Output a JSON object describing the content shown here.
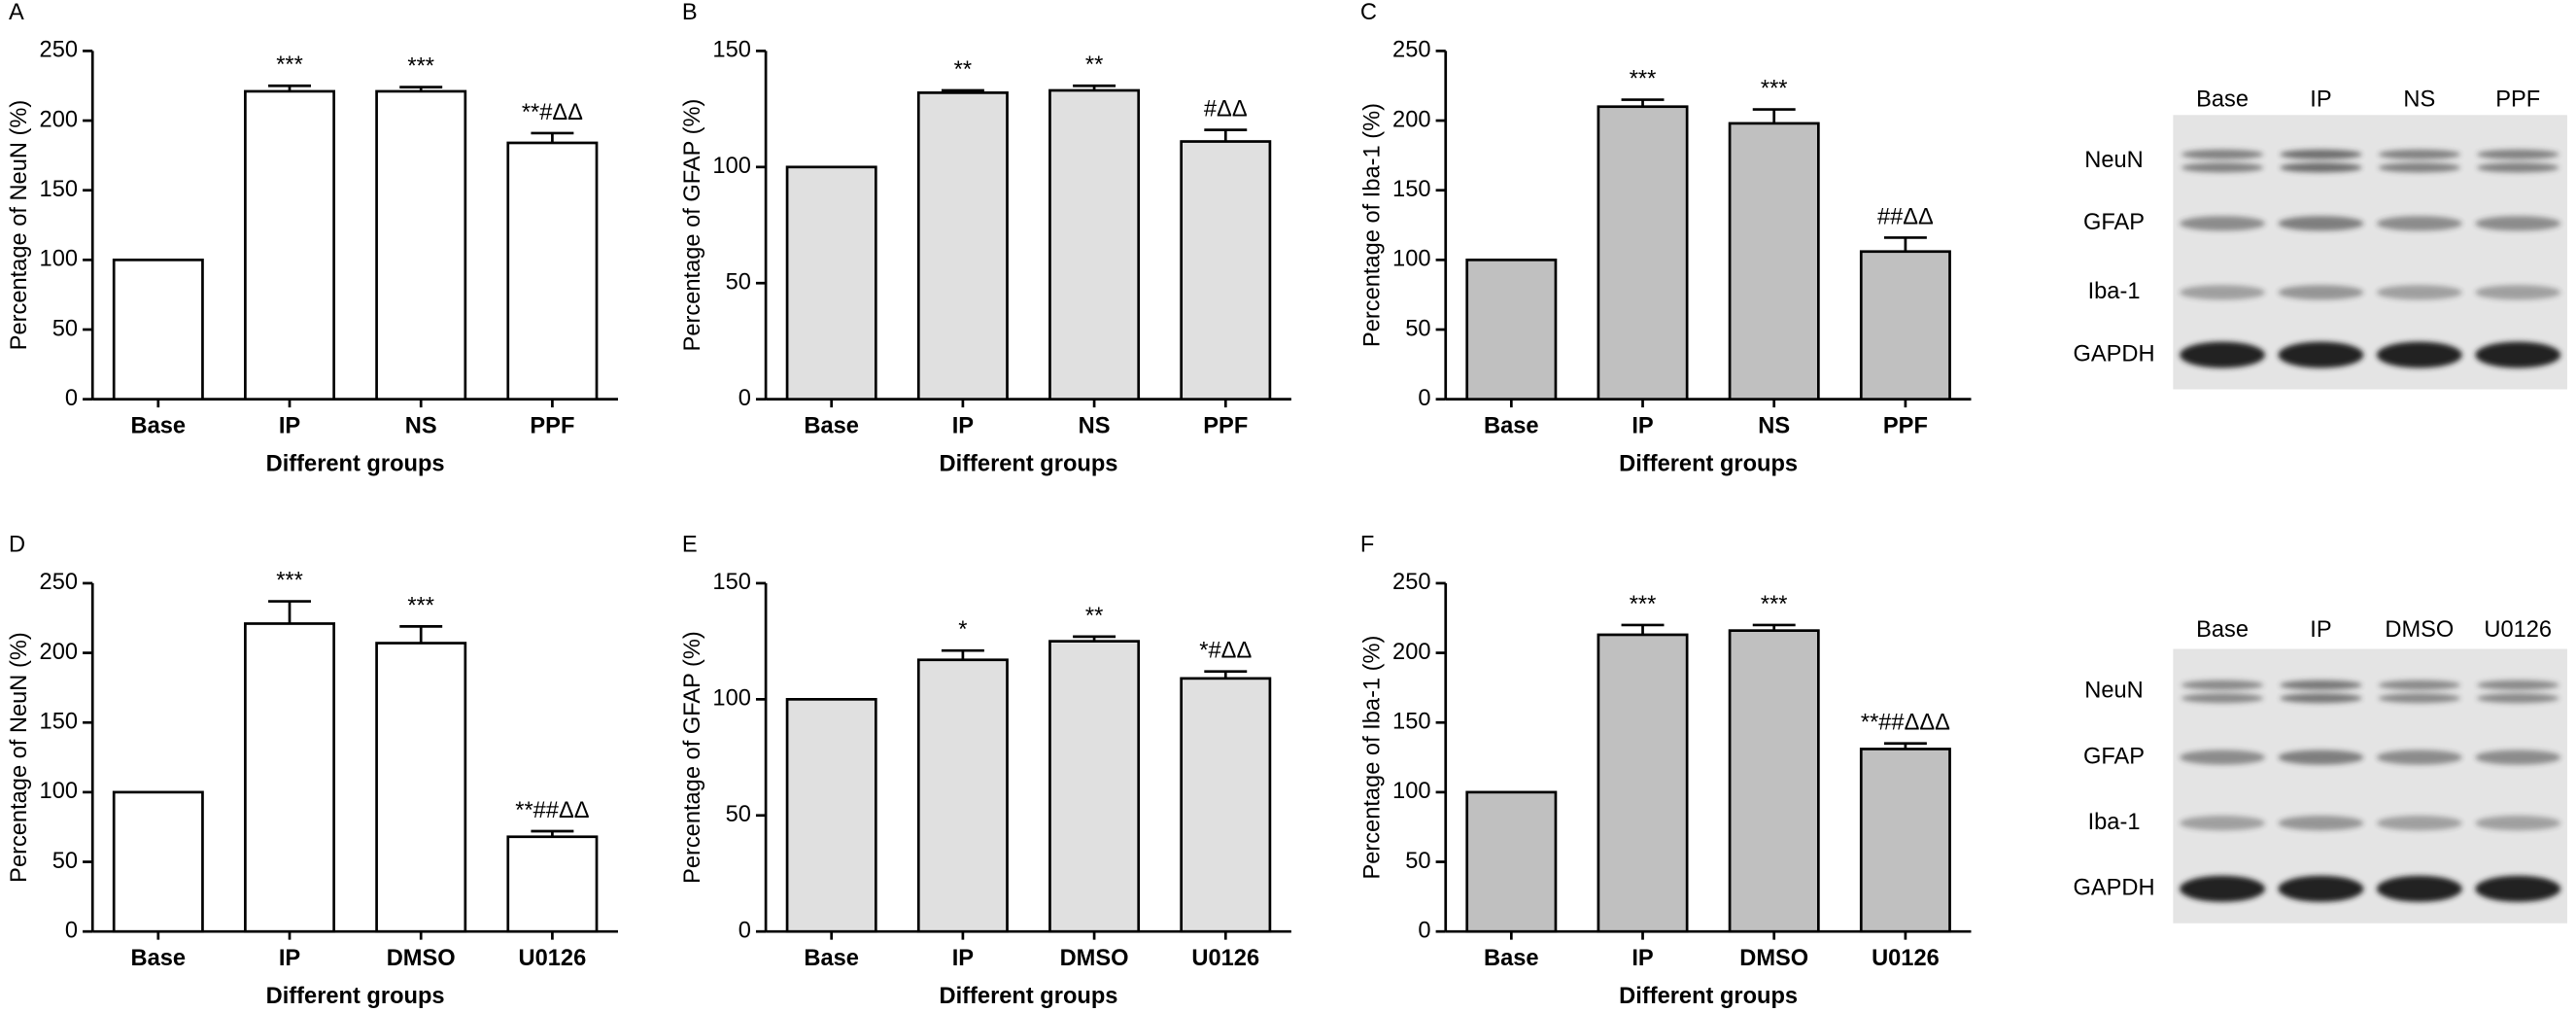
{
  "chart_data": [
    {
      "type": "bar",
      "panel": "A",
      "ylabel": "Percentage of NeuN (%)",
      "xlabel": "Different groups",
      "categories": [
        "Base",
        "IP",
        "NS",
        "PPF"
      ],
      "values": [
        100,
        221,
        221,
        184
      ],
      "errors": [
        0,
        4,
        3,
        7
      ],
      "annotations": [
        null,
        "***",
        "***",
        "**#ΔΔ"
      ],
      "color": "#ffffff",
      "ylim": [
        0,
        250
      ],
      "yticks": [
        0,
        50,
        100,
        150,
        200,
        250
      ]
    },
    {
      "type": "bar",
      "panel": "B",
      "ylabel": "Percentage of GFAP (%)",
      "xlabel": "Different groups",
      "categories": [
        "Base",
        "IP",
        "NS",
        "PPF"
      ],
      "values": [
        100,
        132,
        133,
        111
      ],
      "errors": [
        0,
        1,
        2,
        5
      ],
      "annotations": [
        null,
        "**",
        "**",
        "#ΔΔ"
      ],
      "color": "#e0e0e0",
      "ylim": [
        0,
        150
      ],
      "yticks": [
        0,
        50,
        100,
        150
      ]
    },
    {
      "type": "bar",
      "panel": "C",
      "ylabel": "Percentage of Iba-1 (%)",
      "xlabel": "Different groups",
      "categories": [
        "Base",
        "IP",
        "NS",
        "PPF"
      ],
      "values": [
        100,
        210,
        198,
        106
      ],
      "errors": [
        0,
        5,
        10,
        10
      ],
      "annotations": [
        null,
        "***",
        "***",
        "##ΔΔ"
      ],
      "color": "#c0c0c0",
      "ylim": [
        0,
        250
      ],
      "yticks": [
        0,
        50,
        100,
        150,
        200,
        250
      ]
    },
    {
      "type": "bar",
      "panel": "D",
      "ylabel": "Percentage of NeuN (%)",
      "xlabel": "Different groups",
      "categories": [
        "Base",
        "IP",
        "DMSO",
        "U0126"
      ],
      "values": [
        100,
        221,
        207,
        68
      ],
      "errors": [
        0,
        16,
        12,
        4
      ],
      "annotations": [
        null,
        "***",
        "***",
        "**##ΔΔ"
      ],
      "color": "#ffffff",
      "ylim": [
        0,
        250
      ],
      "yticks": [
        0,
        50,
        100,
        150,
        200,
        250
      ]
    },
    {
      "type": "bar",
      "panel": "E",
      "ylabel": "Percentage of GFAP (%)",
      "xlabel": "Different groups",
      "categories": [
        "Base",
        "IP",
        "DMSO",
        "U0126"
      ],
      "values": [
        100,
        117,
        125,
        109
      ],
      "errors": [
        0,
        4,
        2,
        3
      ],
      "annotations": [
        null,
        "*",
        "**",
        "*#ΔΔ"
      ],
      "color": "#e0e0e0",
      "ylim": [
        0,
        150
      ],
      "yticks": [
        0,
        50,
        100,
        150
      ]
    },
    {
      "type": "bar",
      "panel": "F",
      "ylabel": "Percentage of Iba-1 (%)",
      "xlabel": "Different groups",
      "categories": [
        "Base",
        "IP",
        "DMSO",
        "U0126"
      ],
      "values": [
        100,
        213,
        216,
        131
      ],
      "errors": [
        0,
        7,
        4,
        4
      ],
      "annotations": [
        null,
        "***",
        "***",
        "**##ΔΔΔ"
      ],
      "color": "#c0c0c0",
      "ylim": [
        0,
        250
      ],
      "yticks": [
        0,
        50,
        100,
        150,
        200,
        250
      ]
    }
  ],
  "blots": [
    {
      "lanes": [
        "Base",
        "IP",
        "NS",
        "PPF"
      ],
      "proteins": [
        "NeuN",
        "GFAP",
        "Iba-1",
        "GAPDH"
      ]
    },
    {
      "lanes": [
        "Base",
        "IP",
        "DMSO",
        "U0126"
      ],
      "proteins": [
        "NeuN",
        "GFAP",
        "Iba-1",
        "GAPDH"
      ]
    }
  ]
}
